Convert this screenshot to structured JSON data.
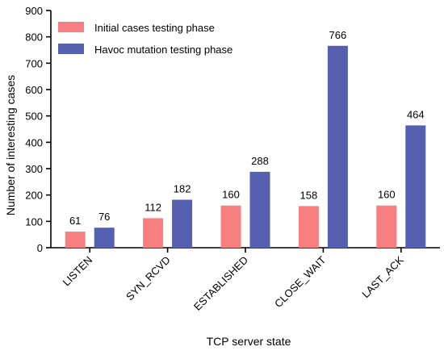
{
  "chart_data": {
    "type": "bar",
    "title": "",
    "xlabel": "TCP server  state",
    "ylabel": "Number of interesting cases",
    "categories": [
      "LISTEN",
      "SYN_RCVD",
      "ESTABLISHED",
      "CLOSE_WAIT",
      "LAST_ACK"
    ],
    "series": [
      {
        "name": "Initial cases testing phase",
        "values": [
          61,
          112,
          160,
          158,
          160
        ],
        "color": "#f77f7f"
      },
      {
        "name": "Havoc mutation testing phase",
        "values": [
          76,
          182,
          288,
          766,
          464
        ],
        "color": "#5660b0"
      }
    ],
    "ylim": [
      0,
      900
    ],
    "yticks": [
      0,
      100,
      200,
      300,
      400,
      500,
      600,
      700,
      800,
      900
    ],
    "grid": false,
    "legend_position": "top-left"
  }
}
